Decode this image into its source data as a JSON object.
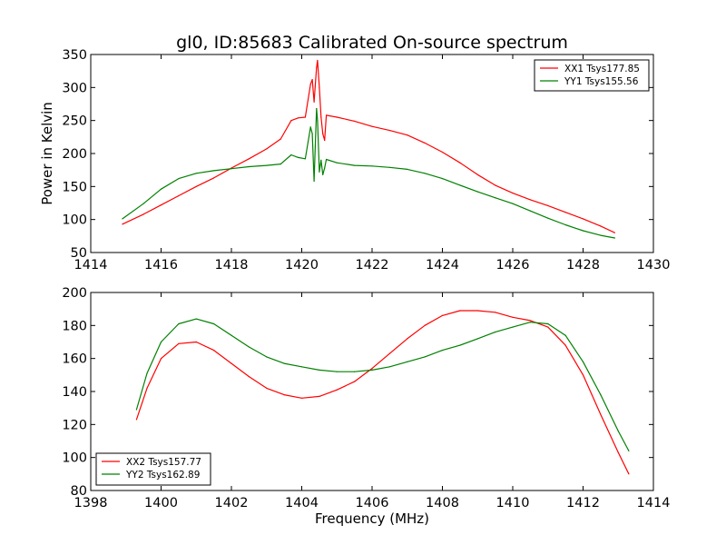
{
  "chart_data": [
    {
      "type": "line",
      "title": "gl0, ID:85683 Calibrated On-source spectrum",
      "xlabel": "",
      "ylabel": "Power in Kelvin",
      "xlim": [
        1414,
        1430
      ],
      "ylim": [
        50,
        350
      ],
      "xticks": [
        "1414",
        "1416",
        "1418",
        "1420",
        "1422",
        "1424",
        "1426",
        "1428",
        "1430"
      ],
      "yticks": [
        "50",
        "100",
        "150",
        "200",
        "250",
        "300",
        "350"
      ],
      "legend_position": "upper right",
      "series": [
        {
          "name": "XX1 Tsys177.85",
          "color": "#ff0000",
          "x": [
            1414.9,
            1415.5,
            1416,
            1416.5,
            1417,
            1417.5,
            1418,
            1418.5,
            1419,
            1419.4,
            1419.7,
            1419.9,
            1420.1,
            1420.25,
            1420.3,
            1420.35,
            1420.42,
            1420.45,
            1420.5,
            1420.55,
            1420.6,
            1420.65,
            1420.7,
            1421,
            1421.5,
            1422,
            1422.5,
            1423,
            1423.5,
            1424,
            1424.5,
            1425,
            1425.5,
            1426,
            1426.5,
            1427,
            1427.5,
            1428,
            1428.5,
            1428.9
          ],
          "y": [
            93,
            108,
            122,
            136,
            150,
            163,
            178,
            192,
            207,
            222,
            250,
            254,
            255,
            305,
            312,
            278,
            330,
            341,
            300,
            255,
            230,
            220,
            258,
            255,
            249,
            241,
            235,
            228,
            216,
            202,
            186,
            168,
            152,
            140,
            130,
            121,
            111,
            101,
            90,
            80
          ]
        },
        {
          "name": "YY1 Tsys155.56",
          "color": "#008000",
          "x": [
            1414.9,
            1415.5,
            1416,
            1416.5,
            1417,
            1417.5,
            1418,
            1418.5,
            1419,
            1419.4,
            1419.7,
            1419.9,
            1420.1,
            1420.25,
            1420.3,
            1420.35,
            1420.42,
            1420.45,
            1420.5,
            1420.55,
            1420.6,
            1420.65,
            1420.7,
            1421,
            1421.5,
            1422,
            1422.5,
            1423,
            1423.5,
            1424,
            1424.5,
            1425,
            1425.5,
            1426,
            1426.5,
            1427,
            1427.5,
            1428,
            1428.5,
            1428.9
          ],
          "y": [
            101,
            124,
            146,
            162,
            170,
            174,
            177,
            180,
            182,
            184,
            198,
            194,
            192,
            240,
            230,
            158,
            268,
            250,
            172,
            190,
            168,
            178,
            191,
            186,
            182,
            181,
            179,
            176,
            170,
            162,
            152,
            142,
            133,
            124,
            113,
            102,
            92,
            83,
            76,
            72
          ]
        }
      ]
    },
    {
      "type": "line",
      "title": "",
      "xlabel": "Frequency (MHz)",
      "ylabel": "",
      "xlim": [
        1398,
        1414
      ],
      "ylim": [
        80,
        200
      ],
      "xticks": [
        "1398",
        "1400",
        "1402",
        "1404",
        "1406",
        "1408",
        "1410",
        "1412",
        "1414"
      ],
      "yticks": [
        "80",
        "100",
        "120",
        "140",
        "160",
        "180",
        "200"
      ],
      "legend_position": "lower left",
      "series": [
        {
          "name": "XX2 Tsys157.77",
          "color": "#ff0000",
          "x": [
            1399.3,
            1399.6,
            1400,
            1400.5,
            1401,
            1401.5,
            1402,
            1402.5,
            1403,
            1403.5,
            1404,
            1404.5,
            1405,
            1405.5,
            1406,
            1406.5,
            1407,
            1407.5,
            1408,
            1408.5,
            1409,
            1409.5,
            1410,
            1410.5,
            1411,
            1411.5,
            1412,
            1412.5,
            1413,
            1413.3
          ],
          "y": [
            123,
            142,
            160,
            169,
            170,
            165,
            157,
            149,
            142,
            138,
            136,
            137,
            141,
            146,
            154,
            163,
            172,
            180,
            186,
            189,
            189,
            188,
            185,
            183,
            179,
            168,
            150,
            126,
            103,
            90
          ]
        },
        {
          "name": "YY2 Tsys162.89",
          "color": "#008000",
          "x": [
            1399.3,
            1399.6,
            1400,
            1400.5,
            1401,
            1401.5,
            1402,
            1402.5,
            1403,
            1403.5,
            1404,
            1404.5,
            1405,
            1405.5,
            1406,
            1406.5,
            1407,
            1407.5,
            1408,
            1408.5,
            1409,
            1409.5,
            1410,
            1410.5,
            1411,
            1411.5,
            1412,
            1412.5,
            1413,
            1413.3
          ],
          "y": [
            129,
            151,
            170,
            181,
            184,
            181,
            174,
            167,
            161,
            157,
            155,
            153,
            152,
            152,
            153,
            155,
            158,
            161,
            165,
            168,
            172,
            176,
            179,
            182,
            181,
            174,
            158,
            138,
            116,
            104
          ]
        }
      ]
    }
  ]
}
